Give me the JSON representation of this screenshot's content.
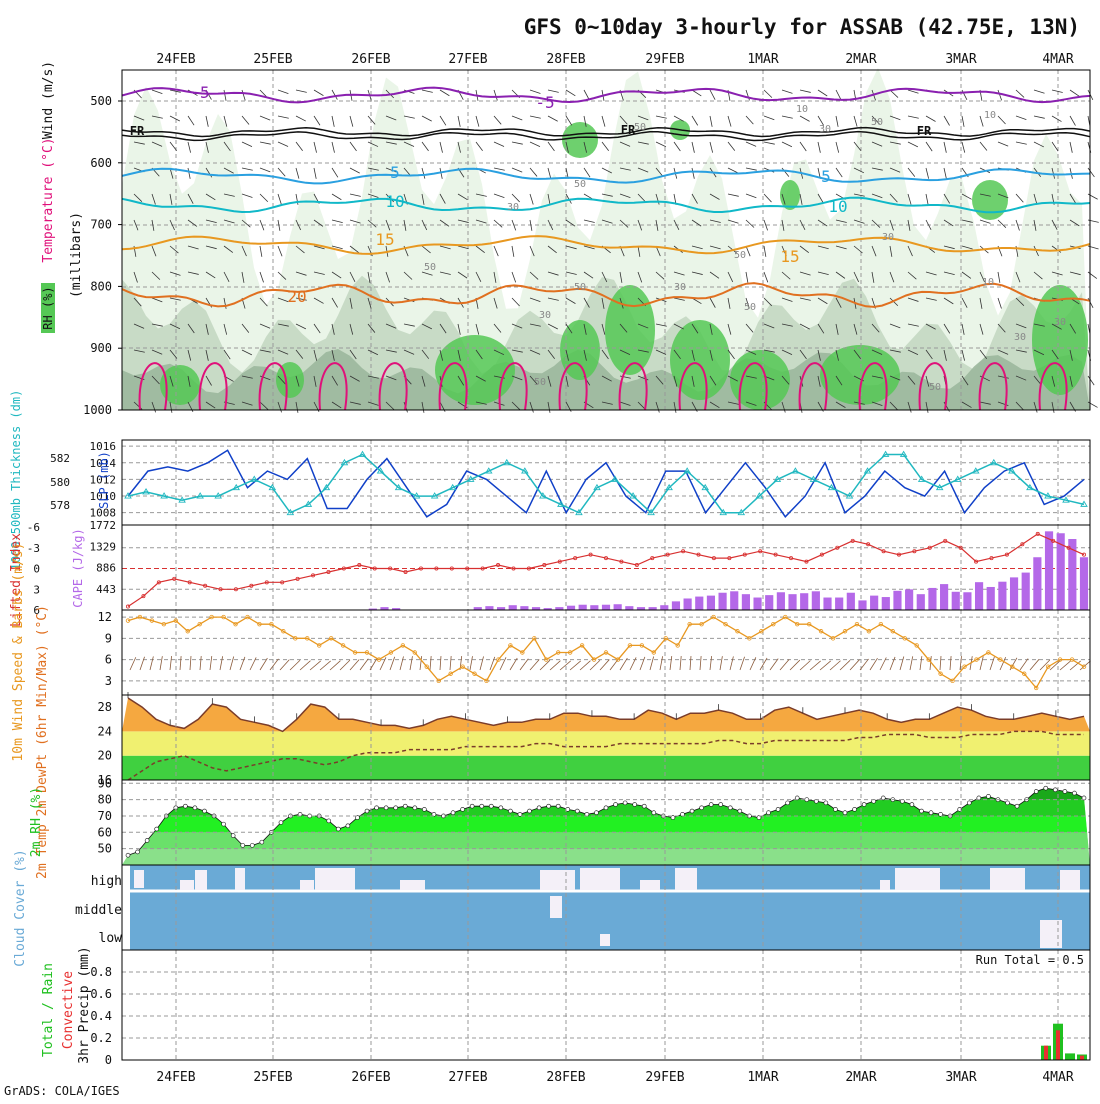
{
  "title": "GFS 0~10day 3-hourly for ASSAB (42.75E, 13N)",
  "footer": "GrADS: COLA/IGES",
  "dates": [
    "24FEB",
    "25FEB",
    "26FEB",
    "27FEB",
    "28FEB",
    "29FEB",
    "1MAR",
    "2MAR",
    "3MAR",
    "4MAR"
  ],
  "colors": {
    "rh_light": "#e8f4e6",
    "rh_mid": "#c4d8c2",
    "rh_dark": "#9bb79c",
    "rh_green": "#55c855",
    "purple": "#8a20b0",
    "black": "#111111",
    "blue": "#2aa0e0",
    "teal": "#10b8c8",
    "orange": "#e89820",
    "dorange": "#e07020",
    "magenta": "#e0107a",
    "slp": "#1040c8",
    "thick": "#20b8c0",
    "lifted": "#d83030",
    "cape": "#b468e8",
    "wind10": "#e89820",
    "barb10": "#8a5a3a",
    "temp_fill": "#f5a840",
    "temp_line": "#7a3c2a",
    "cloud": "#6aaad6",
    "rain": "#20c020",
    "convective": "#e83030"
  },
  "chart_data": [
    {
      "type": "contour",
      "panel": "upper-air",
      "ylabel_rh": "RH (%)",
      "ylabel_temp": "Temperature (°C)",
      "ylabel_wind": "Wind (m/s)",
      "ylabel_p": "(millibars)",
      "yticks": [
        "500",
        "600",
        "700",
        "800",
        "900",
        "1000"
      ],
      "ylim": [
        1000,
        450
      ],
      "isotherm_labels": [
        {
          "text": "-5",
          "color": "purple"
        },
        {
          "text": "-5",
          "color": "purple"
        },
        {
          "text": "FR",
          "color": "black"
        },
        {
          "text": "FR",
          "color": "black"
        },
        {
          "text": "FR",
          "color": "black"
        },
        {
          "text": "5",
          "color": "blue"
        },
        {
          "text": "5",
          "color": "blue"
        },
        {
          "text": "10",
          "color": "teal"
        },
        {
          "text": "10",
          "color": "teal"
        },
        {
          "text": "15",
          "color": "orange"
        },
        {
          "text": "15",
          "color": "orange"
        },
        {
          "text": "20",
          "color": "dorange"
        }
      ],
      "rh_contour_labels": [
        "10",
        "30",
        "50",
        "30",
        "50",
        "30",
        "10",
        "50",
        "30",
        "50",
        "10",
        "30",
        "50",
        "30",
        "50",
        "50",
        "50",
        "50",
        "30"
      ]
    },
    {
      "type": "line",
      "panel": "slp-thickness",
      "ylabel_thick": "1000-500mb Thickness (dm)",
      "ylabel_slp": "SLP (mb)",
      "yticks_thick": [
        "578",
        "580",
        "582"
      ],
      "yticks_slp": [
        "1008",
        "1010",
        "1012",
        "1014",
        "1016"
      ],
      "ylim_slp": [
        1007,
        1016.5
      ],
      "series": [
        {
          "key": "slp",
          "values": [
            1010,
            1013,
            1013.5,
            1013,
            1014,
            1015.5,
            1011,
            1013,
            1012,
            1014.5,
            1008.5,
            1008.5,
            1012,
            1014.5,
            1011,
            1007.5,
            1009,
            1013,
            1012,
            1010,
            1008,
            1013,
            1008,
            1012,
            1014,
            1010,
            1008,
            1013,
            1013,
            1008,
            1011,
            1014,
            1011,
            1007.5,
            1010,
            1014,
            1008,
            1010,
            1013,
            1011,
            1010,
            1013,
            1008,
            1011,
            1013,
            1014,
            1009,
            1010,
            1012
          ]
        },
        {
          "key": "thick",
          "values": [
            1010,
            1010.5,
            1010,
            1009.5,
            1010,
            1010,
            1011,
            1012,
            1011,
            1008,
            1009,
            1011,
            1014,
            1015,
            1013,
            1011,
            1010,
            1010,
            1011,
            1012,
            1013,
            1014,
            1013,
            1010,
            1009,
            1008,
            1011,
            1012,
            1010,
            1008,
            1011,
            1013,
            1011,
            1008,
            1008,
            1010,
            1012,
            1013,
            1012,
            1011,
            1010,
            1013,
            1015,
            1015,
            1012,
            1011,
            1012,
            1013,
            1014,
            1013,
            1011,
            1010,
            1009.5,
            1009
          ]
        }
      ]
    },
    {
      "type": "bar-line",
      "panel": "lifted-cape",
      "ylabel_li": "Lifted Index",
      "ylabel_cape": "CAPE (J/kg)",
      "yticks_li": [
        "-6",
        "-3",
        "0",
        "3",
        "6"
      ],
      "yticks_cape": [
        "443",
        "886",
        "1329",
        "1772"
      ],
      "ylim_li": [
        6,
        -6
      ],
      "series": [
        {
          "key": "lifted",
          "values": [
            5.5,
            4,
            2,
            1.5,
            2,
            2.5,
            3,
            3,
            2.5,
            2,
            2,
            1.5,
            1,
            0.5,
            0,
            -0.5,
            0,
            0,
            0.5,
            0,
            0,
            0,
            0,
            0,
            -0.5,
            0,
            0,
            -0.5,
            -1,
            -1.5,
            -2,
            -1.5,
            -1,
            -0.5,
            -1.5,
            -2,
            -2.5,
            -2,
            -1.5,
            -1.5,
            -2,
            -2.5,
            -2,
            -1.5,
            -1,
            -2,
            -3,
            -4,
            -3.5,
            -2.5,
            -2,
            -2.5,
            -3,
            -4,
            -3,
            -1,
            -1.5,
            -2,
            -3.5,
            -5,
            -4,
            -3,
            -2
          ]
        },
        {
          "key": "cape",
          "values": [
            0,
            0,
            0,
            0,
            0,
            0,
            0,
            0,
            0,
            0,
            0,
            0,
            0,
            0,
            0,
            0,
            0,
            0,
            0,
            0,
            0,
            30,
            60,
            40,
            0,
            0,
            0,
            0,
            0,
            0,
            60,
            80,
            60,
            100,
            80,
            60,
            40,
            60,
            90,
            110,
            100,
            110,
            120,
            80,
            60,
            60,
            100,
            180,
            240,
            280,
            300,
            360,
            390,
            330,
            260,
            310,
            370,
            330,
            350,
            390,
            260,
            260,
            360,
            200,
            300,
            270,
            400,
            430,
            330,
            460,
            540,
            380,
            370,
            580,
            480,
            590,
            680,
            780,
            1100,
            1640,
            1600,
            1480,
            1100
          ]
        }
      ]
    },
    {
      "type": "line",
      "panel": "wind-10m",
      "ylabel": "10m Wind Speed & Barbs (m/s)",
      "yticks": [
        "3",
        "6",
        "9",
        "12"
      ],
      "ylim": [
        1,
        13
      ],
      "series": [
        {
          "key": "wind10",
          "values": [
            11.5,
            12,
            11.5,
            11,
            11.5,
            10,
            11,
            12,
            12,
            11,
            12,
            11,
            11,
            10,
            9,
            9,
            8,
            9,
            8,
            7,
            7,
            6,
            7,
            8,
            7,
            5,
            3,
            4,
            5,
            4,
            3,
            6,
            8,
            7,
            9,
            6,
            7,
            7,
            8,
            6,
            7,
            6,
            8,
            8,
            7,
            9,
            8,
            11,
            11,
            12,
            11,
            10,
            9,
            10,
            11,
            12,
            11,
            11,
            10,
            9,
            10,
            11,
            10,
            11,
            10,
            9,
            8,
            6,
            4,
            3,
            5,
            6,
            7,
            6,
            5,
            4,
            2,
            5,
            6,
            6,
            5
          ]
        }
      ]
    },
    {
      "type": "area",
      "panel": "temperature",
      "ylabel": "2m Temp 2m DewPt (6hr Min/Max) (°C)",
      "yticks": [
        "16",
        "20",
        "24",
        "28"
      ],
      "ylim": [
        16,
        30
      ],
      "series": [
        {
          "key": "temp_max",
          "values": [
            29.5,
            28,
            26,
            25,
            24.5,
            26,
            28.5,
            28,
            26,
            25.5,
            25,
            24,
            26,
            28.5,
            28,
            26,
            26,
            25.5,
            25,
            25,
            24.5,
            25,
            26,
            26.5,
            26,
            25.5,
            25,
            25.5,
            25.5,
            26,
            26,
            27,
            27,
            26.5,
            26.5,
            26,
            26,
            27.5,
            27,
            26,
            27,
            27,
            27.5,
            27,
            26,
            26,
            27.5,
            28,
            27,
            26,
            26.5,
            27,
            27.5,
            27,
            26,
            25.5,
            26,
            26,
            27,
            28,
            27.5,
            26.5,
            26,
            26,
            26.5,
            27,
            26.5,
            26,
            26.5
          ]
        },
        {
          "key": "dewpt",
          "values": [
            16,
            17.5,
            19,
            19.5,
            20,
            19,
            18,
            17.5,
            18,
            18.5,
            19,
            19.5,
            19.5,
            19,
            18.5,
            19,
            20,
            20.5,
            20.5,
            20.5,
            21,
            21,
            21,
            21,
            21.5,
            21.5,
            21.5,
            21.5,
            21.5,
            22,
            22,
            21.5,
            21.5,
            21.5,
            21.5,
            22,
            22,
            22,
            22,
            22,
            22,
            22,
            22.5,
            22.5,
            22,
            22,
            22.5,
            22.5,
            22.5,
            22.5,
            22.5,
            22.5,
            23,
            23,
            23.5,
            23.5,
            23.5,
            23,
            23,
            23,
            23.5,
            23.5,
            23.5,
            24,
            24,
            24,
            23.5,
            23.5,
            23.5
          ]
        }
      ]
    },
    {
      "type": "area",
      "panel": "relative-humidity",
      "ylabel": "2m RH (%)",
      "yticks": [
        "50",
        "60",
        "70",
        "80",
        "90"
      ],
      "ylim": [
        40,
        92
      ],
      "series": [
        {
          "key": "rh2m",
          "values": [
            46,
            48,
            55,
            62,
            70,
            75,
            76,
            75,
            73,
            70,
            65,
            58,
            52,
            52,
            54,
            60,
            66,
            70,
            71,
            70,
            70,
            67,
            62,
            64,
            69,
            73,
            75,
            75,
            75,
            76,
            75,
            74,
            71,
            70,
            72,
            74,
            76,
            76,
            76,
            75,
            73,
            71,
            73,
            75,
            76,
            76,
            74,
            73,
            71,
            72,
            75,
            77,
            78,
            77,
            76,
            72,
            70,
            69,
            71,
            73,
            75,
            77,
            77,
            75,
            73,
            70,
            69,
            72,
            74,
            78,
            81,
            80,
            79,
            78,
            74,
            72,
            74,
            77,
            79,
            81,
            80,
            79,
            77,
            73,
            72,
            71,
            70,
            74,
            78,
            81,
            82,
            80,
            78,
            76,
            80,
            85,
            87,
            86,
            85,
            84,
            81
          ]
        }
      ]
    },
    {
      "type": "bar",
      "panel": "cloud-cover",
      "ylabel": "Cloud Cover (%)",
      "layers": [
        "high",
        "middle",
        "low"
      ]
    },
    {
      "type": "bar",
      "panel": "precip",
      "ylabel": "3hr Precip (mm)",
      "legend": [
        "Total / Rain",
        "Convective"
      ],
      "yticks": [
        "0",
        "0.2",
        "0.4",
        "0.6",
        "0.8"
      ],
      "ylim": [
        0,
        1
      ],
      "annotation": "Run Total = 0.5",
      "series": [
        {
          "key": "rain",
          "values": [
            0.13,
            0.33,
            0.06,
            0.05
          ]
        },
        {
          "key": "convective",
          "values": [
            0.13,
            0.27,
            0,
            0.04
          ]
        }
      ]
    }
  ]
}
